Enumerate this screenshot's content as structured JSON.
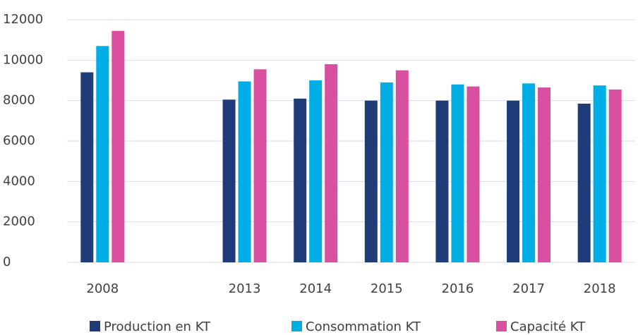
{
  "chart_data": {
    "type": "bar",
    "categories": [
      "2008",
      null,
      "2013",
      "2014",
      "2015",
      "2016",
      "2017",
      "2018"
    ],
    "series": [
      {
        "name": "Production en KT",
        "color": "#1f3c78",
        "values": [
          9400,
          null,
          8050,
          8100,
          8000,
          8000,
          8000,
          7850
        ]
      },
      {
        "name": "Consommation KT",
        "color": "#00ade4",
        "values": [
          10700,
          null,
          8950,
          9000,
          8900,
          8800,
          8850,
          8750
        ]
      },
      {
        "name": "Capacité KT",
        "color": "#d8509f",
        "values": [
          11450,
          null,
          9550,
          9800,
          9500,
          8700,
          8650,
          8550
        ]
      }
    ],
    "ylim": [
      0,
      12000
    ],
    "yticks": [
      0,
      2000,
      4000,
      6000,
      8000,
      10000,
      12000
    ],
    "grid": true,
    "legend": "bottom"
  }
}
